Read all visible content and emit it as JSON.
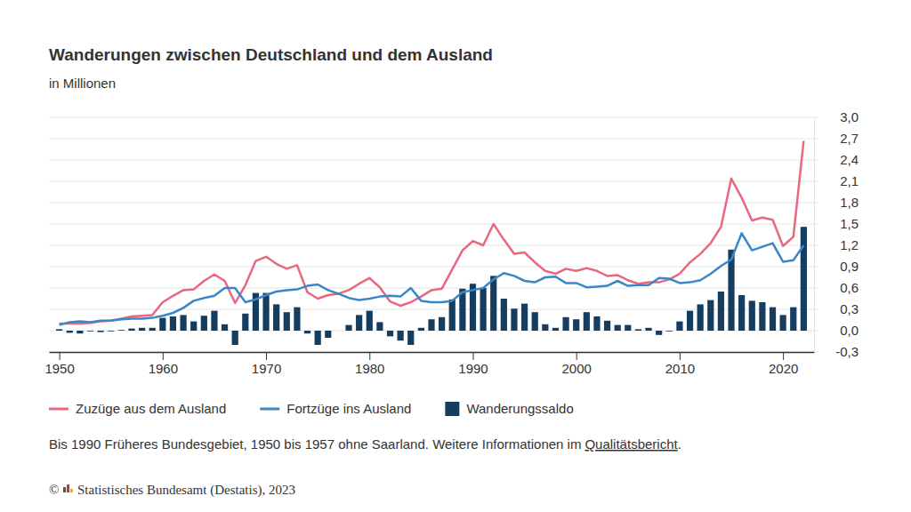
{
  "chart_data": {
    "type": "line",
    "title": "Wanderungen zwischen Deutschland und dem Ausland",
    "subtitle": "in Millionen",
    "note": [
      "Bis 1990 Früheres Bundesgebiet, 1950 bis 1957 ohne Saarland. Weitere Informationen im",
      "Qualitätsbericht",
      "."
    ],
    "source": {
      "symbol": "©",
      "text": "Statistisches Bundesamt (Destatis), 2023"
    },
    "x": [
      1950,
      1951,
      1952,
      1953,
      1954,
      1955,
      1956,
      1957,
      1958,
      1959,
      1960,
      1961,
      1962,
      1963,
      1964,
      1965,
      1966,
      1967,
      1968,
      1969,
      1970,
      1971,
      1972,
      1973,
      1974,
      1975,
      1976,
      1977,
      1978,
      1979,
      1980,
      1981,
      1982,
      1983,
      1984,
      1985,
      1986,
      1987,
      1988,
      1989,
      1990,
      1991,
      1992,
      1993,
      1994,
      1995,
      1996,
      1997,
      1998,
      1999,
      2000,
      2001,
      2002,
      2003,
      2004,
      2005,
      2006,
      2007,
      2008,
      2009,
      2010,
      2011,
      2012,
      2013,
      2014,
      2015,
      2016,
      2017,
      2018,
      2019,
      2020,
      2021,
      2022
    ],
    "xlim": [
      1949,
      2023
    ],
    "xticks": [
      1950,
      1960,
      1970,
      1980,
      1990,
      2000,
      2010,
      2020
    ],
    "ylim": [
      -0.3,
      3.0
    ],
    "yticks": [
      {
        "value": -0.3,
        "label": "-0,3"
      },
      {
        "value": 0,
        "label": "0,0"
      },
      {
        "value": 0.3,
        "label": "0,3"
      },
      {
        "value": 0.6,
        "label": "0,6"
      },
      {
        "value": 0.9,
        "label": "0,9"
      },
      {
        "value": 1.2,
        "label": "1,2"
      },
      {
        "value": 1.5,
        "label": "1,5"
      },
      {
        "value": 1.8,
        "label": "1,8"
      },
      {
        "value": 2.1,
        "label": "2,1"
      },
      {
        "value": 2.4,
        "label": "2,4"
      },
      {
        "value": 2.7,
        "label": "2,7"
      },
      {
        "value": 3.0,
        "label": "3,0"
      }
    ],
    "grid": true,
    "legend": "bottom",
    "series": [
      {
        "name": "Zuzüge aus dem Ausland",
        "type": "line",
        "color": "#e8687f",
        "values": [
          0.1,
          0.1,
          0.1,
          0.11,
          0.13,
          0.14,
          0.17,
          0.2,
          0.21,
          0.22,
          0.4,
          0.49,
          0.57,
          0.58,
          0.7,
          0.79,
          0.7,
          0.39,
          0.64,
          0.98,
          1.04,
          0.94,
          0.87,
          0.92,
          0.54,
          0.45,
          0.5,
          0.52,
          0.57,
          0.66,
          0.74,
          0.61,
          0.41,
          0.35,
          0.4,
          0.48,
          0.57,
          0.59,
          0.86,
          1.13,
          1.26,
          1.2,
          1.5,
          1.28,
          1.08,
          1.1,
          0.96,
          0.84,
          0.8,
          0.87,
          0.84,
          0.88,
          0.84,
          0.77,
          0.78,
          0.71,
          0.66,
          0.68,
          0.68,
          0.72,
          0.8,
          0.96,
          1.08,
          1.23,
          1.46,
          2.14,
          1.87,
          1.55,
          1.59,
          1.56,
          1.19,
          1.32,
          2.67
        ]
      },
      {
        "name": "Fortzüge ins Ausland",
        "type": "line",
        "color": "#3a87c8",
        "values": [
          0.08,
          0.12,
          0.13,
          0.12,
          0.14,
          0.14,
          0.16,
          0.17,
          0.17,
          0.18,
          0.21,
          0.25,
          0.32,
          0.42,
          0.46,
          0.49,
          0.6,
          0.6,
          0.4,
          0.44,
          0.5,
          0.55,
          0.57,
          0.58,
          0.63,
          0.65,
          0.57,
          0.52,
          0.46,
          0.43,
          0.45,
          0.48,
          0.49,
          0.48,
          0.6,
          0.42,
          0.4,
          0.4,
          0.42,
          0.54,
          0.57,
          0.6,
          0.72,
          0.81,
          0.77,
          0.7,
          0.68,
          0.75,
          0.76,
          0.67,
          0.67,
          0.61,
          0.62,
          0.63,
          0.7,
          0.63,
          0.64,
          0.64,
          0.74,
          0.73,
          0.67,
          0.68,
          0.71,
          0.8,
          0.91,
          1.0,
          1.37,
          1.13,
          1.18,
          1.23,
          0.97,
          0.99,
          1.2
        ]
      },
      {
        "name": "Wanderungssaldo",
        "type": "bar",
        "color": "#143d5f",
        "values": [
          0.02,
          -0.03,
          -0.04,
          -0.01,
          -0.02,
          -0.01,
          0.01,
          0.03,
          0.04,
          0.04,
          0.18,
          0.2,
          0.22,
          0.13,
          0.21,
          0.28,
          0.09,
          -0.2,
          0.24,
          0.53,
          0.53,
          0.37,
          0.26,
          0.33,
          -0.04,
          -0.2,
          -0.1,
          0.0,
          0.08,
          0.22,
          0.28,
          0.12,
          -0.08,
          -0.14,
          -0.2,
          0.04,
          0.16,
          0.19,
          0.44,
          0.59,
          0.66,
          0.6,
          0.77,
          0.45,
          0.31,
          0.38,
          0.26,
          0.09,
          0.04,
          0.19,
          0.16,
          0.26,
          0.2,
          0.14,
          0.08,
          0.08,
          0.02,
          0.04,
          -0.06,
          -0.01,
          0.13,
          0.28,
          0.37,
          0.43,
          0.55,
          1.14,
          0.5,
          0.42,
          0.4,
          0.33,
          0.22,
          0.33,
          1.46
        ]
      }
    ]
  }
}
